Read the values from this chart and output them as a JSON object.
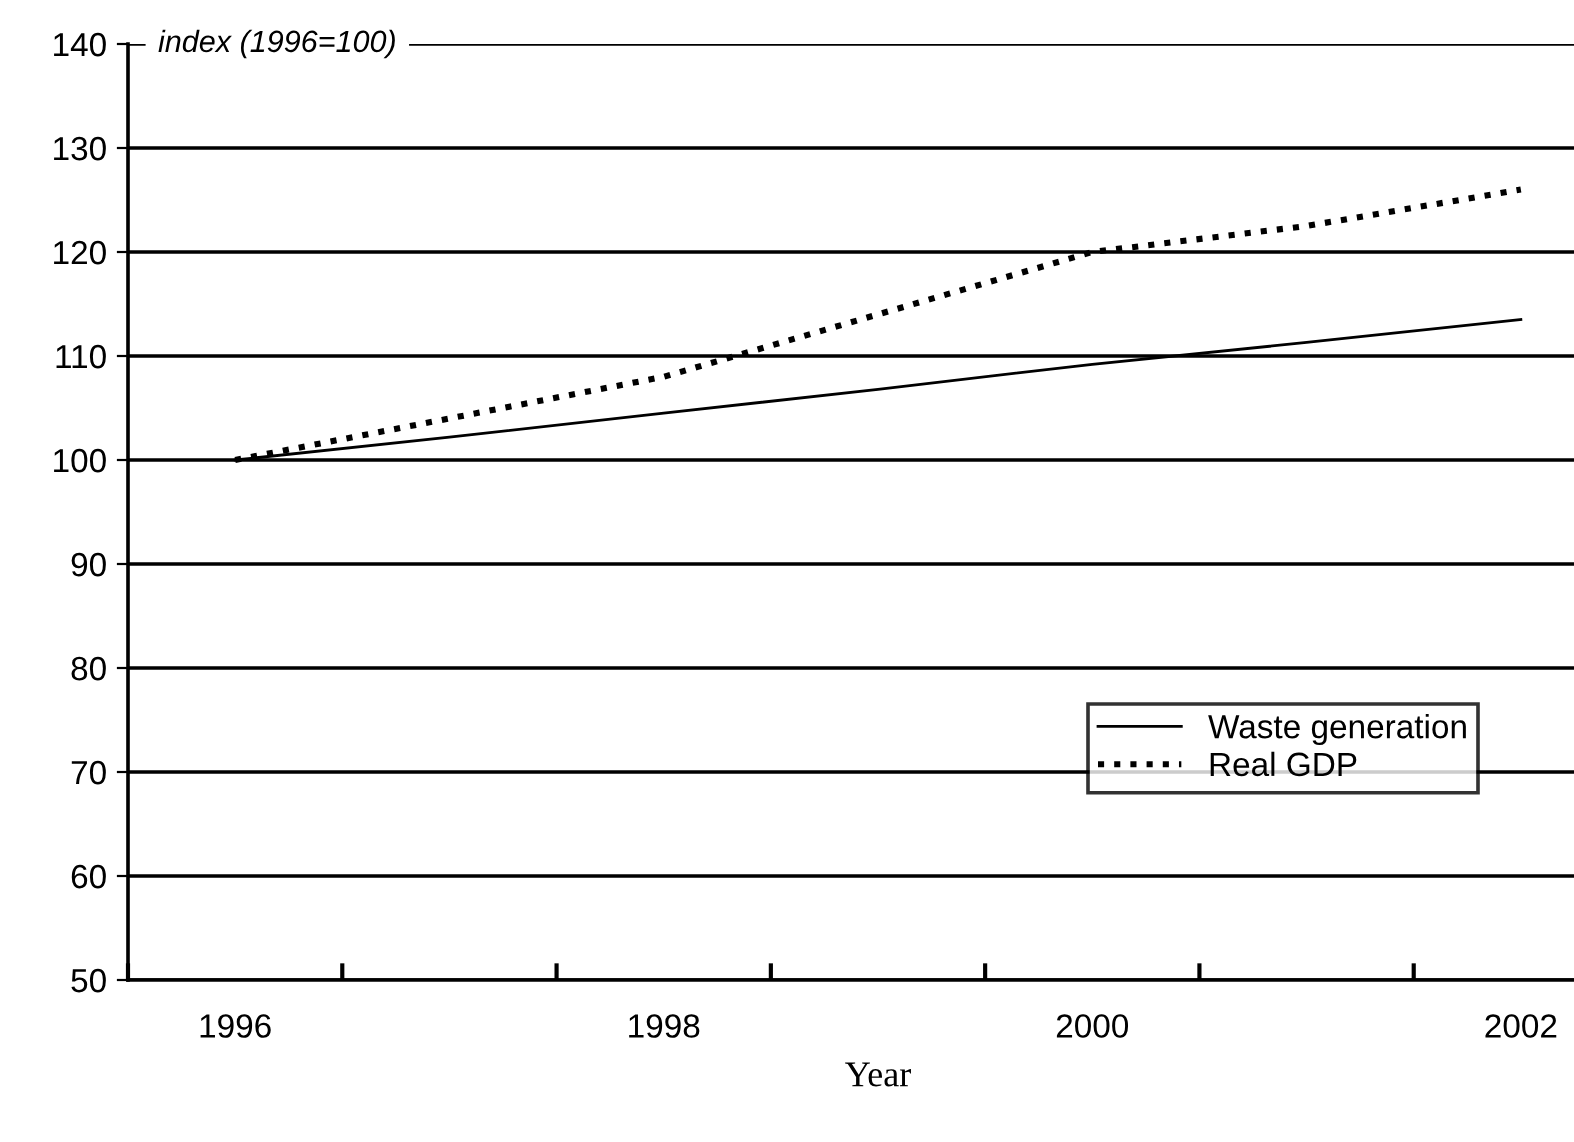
{
  "chart_data": {
    "type": "line",
    "ylabel": "index (1996=100)",
    "xlabel": "Year",
    "categories": [
      "1996",
      null,
      "1998",
      null,
      "2000",
      null,
      "2002"
    ],
    "series": [
      {
        "name": "Waste generation",
        "color": "#000000",
        "line_style": "solid",
        "values": [
          100,
          102.2,
          104.5,
          106.8,
          109.2,
          111.3,
          113.5
        ]
      },
      {
        "name": "Real GDP",
        "color": "#000000",
        "line_style": "dotted",
        "values": [
          100,
          104,
          108,
          114,
          120,
          122.5,
          126
        ]
      }
    ],
    "ylim": [
      50,
      140
    ],
    "yticks": [
      50,
      60,
      70,
      80,
      90,
      100,
      110,
      120,
      130,
      140
    ],
    "grid": "y",
    "legend": "bottom right",
    "marker": "none"
  }
}
